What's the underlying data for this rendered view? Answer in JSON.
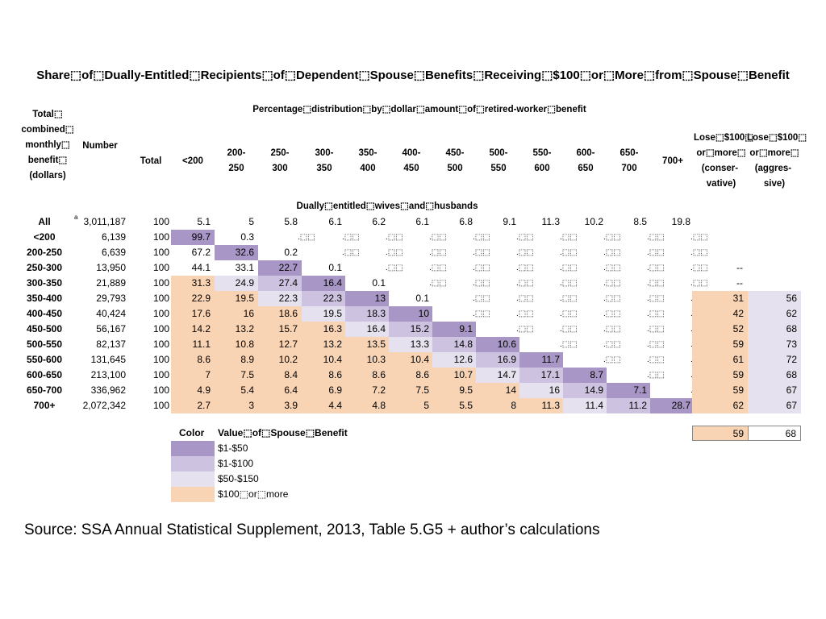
{
  "title": "Share⬚of⬚Dually-Entitled⬚Recipients⬚of⬚Dependent⬚Spouse⬚Benefits⬚Receiving⬚$100⬚or⬚More⬚from⬚Spouse⬚Benefit",
  "subtitle": "Percentage⬚distribution⬚by⬚dollar⬚amount⬚of⬚retired-worker⬚benefit",
  "headers": {
    "combined": "Total⬚ combined⬚ monthly⬚ benefit⬚ (dollars)",
    "number": "Number",
    "total": "Total",
    "cols": [
      "<200",
      "200-\n250",
      "250-\n300",
      "300-\n350",
      "350-\n400",
      "400-\n450",
      "450-\n500",
      "500-\n550",
      "550-\n600",
      "600-\n650",
      "650-\n700",
      "700+"
    ],
    "lose_conservative": "Lose⬚$100⬚ or⬚more⬚ (conser-  vative)",
    "lose_aggressive": "Lose⬚$100⬚ or⬚more⬚ (aggres-  sive)"
  },
  "section_label": "Dually⬚entitled⬚wives⬚and⬚husbands",
  "footnote_marker": "a",
  "missing_marker": ".⬚⬚",
  "dash_marker": "--",
  "colors": {
    "c50": "#a796c6",
    "c100": "#cdc2df",
    "c150": "#e6e1ee",
    "c100plus": "#f9d4b4"
  },
  "rows": [
    {
      "label": "All",
      "number": "3,011,187",
      "total": "100",
      "vals": [
        "5.1",
        "5",
        "5.8",
        "6.1",
        "6.2",
        "6.1",
        "6.8",
        "9.1",
        "11.3",
        "10.2",
        "8.5",
        "19.8"
      ],
      "cons": "",
      "aggr": ""
    },
    {
      "label": "<200",
      "number": "6,139",
      "total": "100",
      "vals": [
        "99.7",
        "0.3",
        "-",
        "-",
        "-",
        "-",
        "-",
        "-",
        "-",
        "-",
        "-",
        "-"
      ],
      "cons": "",
      "aggr": ""
    },
    {
      "label": "200-250",
      "number": "6,639",
      "total": "100",
      "vals": [
        "67.2",
        "32.6",
        "0.2",
        "-",
        "-",
        "-",
        "-",
        "-",
        "-",
        "-",
        "-",
        "-"
      ],
      "cons": "",
      "aggr": ""
    },
    {
      "label": "250-300",
      "number": "13,950",
      "total": "100",
      "vals": [
        "44.1",
        "33.1",
        "22.7",
        "0.1",
        "-",
        "-",
        "-",
        "-",
        "-",
        "-",
        "-",
        "-"
      ],
      "cons": "--",
      "aggr": ""
    },
    {
      "label": "300-350",
      "number": "21,889",
      "total": "100",
      "vals": [
        "31.3",
        "24.9",
        "27.4",
        "16.4",
        "0.1",
        "-",
        "-",
        "-",
        "-",
        "-",
        "-",
        "-"
      ],
      "cons": "--",
      "aggr": ""
    },
    {
      "label": "350-400",
      "number": "29,793",
      "total": "100",
      "vals": [
        "22.9",
        "19.5",
        "22.3",
        "22.3",
        "13",
        "0.1",
        "-",
        "-",
        "-",
        "-",
        "-",
        "-"
      ],
      "cons": "31",
      "aggr": "56"
    },
    {
      "label": "400-450",
      "number": "40,424",
      "total": "100",
      "vals": [
        "17.6",
        "16",
        "18.6",
        "19.5",
        "18.3",
        "10",
        "-",
        "-",
        "-",
        "-",
        "-",
        "-"
      ],
      "cons": "42",
      "aggr": "62"
    },
    {
      "label": "450-500",
      "number": "56,167",
      "total": "100",
      "vals": [
        "14.2",
        "13.2",
        "15.7",
        "16.3",
        "16.4",
        "15.2",
        "9.1",
        "-",
        "-",
        "-",
        "-",
        "-"
      ],
      "cons": "52",
      "aggr": "68"
    },
    {
      "label": "500-550",
      "number": "82,137",
      "total": "100",
      "vals": [
        "11.1",
        "10.8",
        "12.7",
        "13.2",
        "13.5",
        "13.3",
        "14.8",
        "10.6",
        "-",
        "-",
        "-",
        "-"
      ],
      "cons": "59",
      "aggr": "73"
    },
    {
      "label": "550-600",
      "number": "131,645",
      "total": "100",
      "vals": [
        "8.6",
        "8.9",
        "10.2",
        "10.4",
        "10.3",
        "10.4",
        "12.6",
        "16.9",
        "11.7",
        "-",
        "-",
        "-"
      ],
      "cons": "61",
      "aggr": "72"
    },
    {
      "label": "600-650",
      "number": "213,100",
      "total": "100",
      "vals": [
        "7",
        "7.5",
        "8.4",
        "8.6",
        "8.6",
        "8.6",
        "10.7",
        "14.7",
        "17.1",
        "8.7",
        "-",
        "-"
      ],
      "cons": "59",
      "aggr": "68"
    },
    {
      "label": "650-700",
      "number": "336,962",
      "total": "100",
      "vals": [
        "4.9",
        "5.4",
        "6.4",
        "6.9",
        "7.2",
        "7.5",
        "9.5",
        "14",
        "16",
        "14.9",
        "7.1",
        "-"
      ],
      "cons": "59",
      "aggr": "67"
    },
    {
      "label": "700+",
      "number": "2,072,342",
      "total": "100",
      "vals": [
        "2.7",
        "3",
        "3.9",
        "4.4",
        "4.8",
        "5",
        "5.5",
        "8",
        "11.3",
        "11.4",
        "11.2",
        "28.7"
      ],
      "cons": "62",
      "aggr": "67"
    }
  ],
  "summary": {
    "cons": "59",
    "aggr": "68"
  },
  "legend": {
    "header_color": "Color",
    "header_value": "Value⬚of⬚Spouse⬚Benefit",
    "items": [
      "$1-$50",
      "$1-$100",
      "$50-$150",
      "$100⬚or⬚more"
    ]
  },
  "source": "Source: SSA Annual Statistical Supplement, 2013, Table 5.G5 + author’s calculations"
}
